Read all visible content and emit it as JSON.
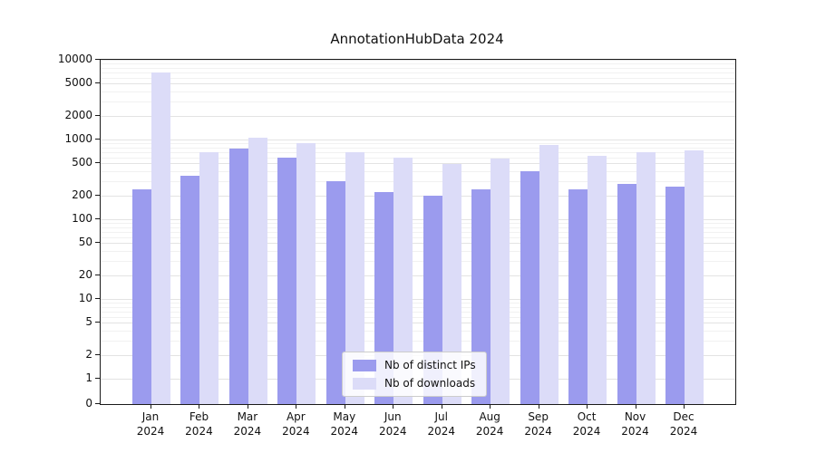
{
  "chart_data": {
    "type": "bar",
    "title": "AnnotationHubData 2024",
    "categories": [
      "Jan 2024",
      "Feb 2024",
      "Mar 2024",
      "Apr 2024",
      "May 2024",
      "Jun 2024",
      "Jul 2024",
      "Aug 2024",
      "Sep 2024",
      "Oct 2024",
      "Nov 2024",
      "Dec 2024"
    ],
    "series": [
      {
        "name": "Nb of distinct IPs",
        "color": "#9b9bee",
        "values": [
          240,
          350,
          780,
          600,
          300,
          220,
          195,
          240,
          400,
          235,
          280,
          255
        ]
      },
      {
        "name": "Nb of downloads",
        "color": "#dcdcf8",
        "values": [
          7000,
          700,
          1050,
          900,
          700,
          600,
          500,
          580,
          850,
          630,
          700,
          740
        ]
      }
    ],
    "yscale": "symlog",
    "ylim": [
      0,
      10000
    ],
    "yticks": [
      0,
      1,
      2,
      5,
      10,
      20,
      50,
      100,
      200,
      500,
      1000,
      2000,
      5000,
      10000
    ],
    "grid": true,
    "legend_position": "lower center",
    "xlabel": "",
    "ylabel": ""
  }
}
